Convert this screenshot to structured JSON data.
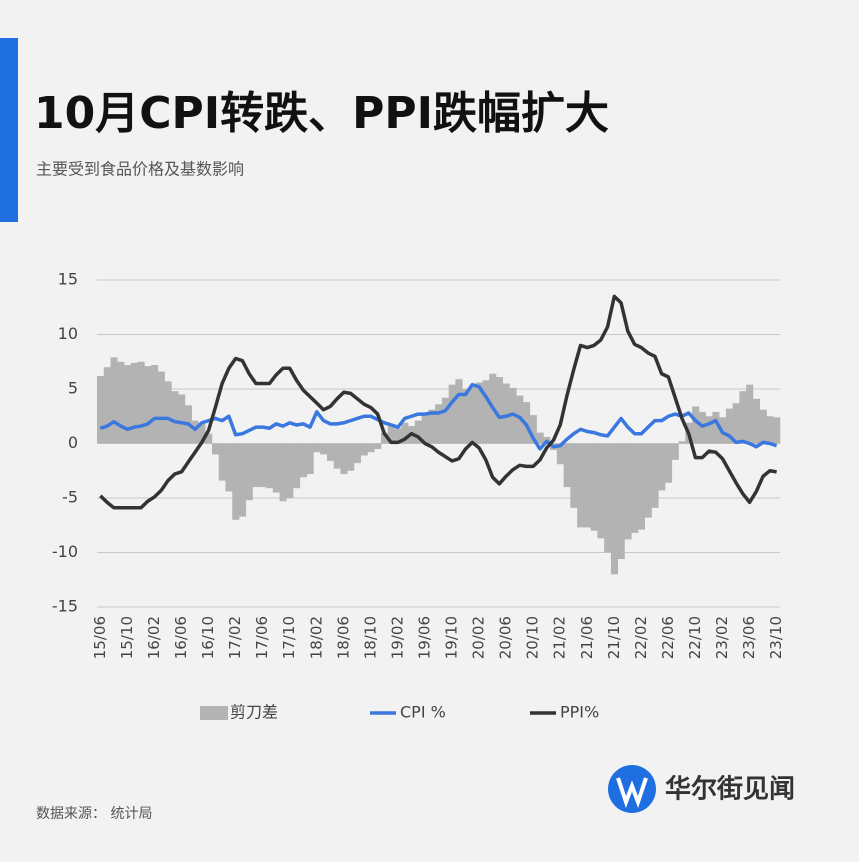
{
  "title": "10月CPI转跌、PPI跌幅扩大",
  "subtitle": "主要受到食品价格及基数影响",
  "source": "数据来源： 统计局",
  "logo": "华尔街见闻",
  "chart_data": {
    "type": "bar",
    "categories": [
      "15/06",
      null,
      null,
      null,
      "15/10",
      null,
      null,
      null,
      "16/02",
      null,
      null,
      null,
      "16/06",
      null,
      null,
      null,
      "16/10",
      null,
      null,
      null,
      "17/02",
      null,
      null,
      null,
      "17/06",
      null,
      null,
      null,
      "17/10",
      null,
      null,
      null,
      "18/02",
      null,
      null,
      null,
      "18/06",
      null,
      null,
      null,
      "18/10",
      null,
      null,
      null,
      "19/02",
      null,
      null,
      null,
      "19/06",
      null,
      null,
      null,
      "19/10",
      null,
      null,
      null,
      "20/02",
      null,
      null,
      null,
      "20/06",
      null,
      null,
      null,
      "20/10",
      null,
      null,
      null,
      "21/02",
      null,
      null,
      null,
      "21/06",
      null,
      null,
      null,
      "21/10",
      null,
      null,
      null,
      "22/02",
      null,
      null,
      null,
      "22/06",
      null,
      null,
      null,
      "22/10",
      null,
      null,
      null,
      "23/02",
      null,
      null,
      null,
      "23/06",
      null,
      null,
      null,
      "23/10"
    ],
    "series": [
      {
        "name": "剪刀差",
        "type": "bar",
        "color": "#b3b3b3",
        "values": [
          6.2,
          7.0,
          7.9,
          7.5,
          7.2,
          7.4,
          7.5,
          7.1,
          7.2,
          6.6,
          5.7,
          4.8,
          4.5,
          3.5,
          2.1,
          1.8,
          0.9,
          -1.0,
          -3.4,
          -4.4,
          -7.0,
          -6.7,
          -5.2,
          -4.0,
          -4.0,
          -4.1,
          -4.5,
          -5.3,
          -5.0,
          -4.1,
          -3.1,
          -2.8,
          -0.8,
          -1.0,
          -1.6,
          -2.3,
          -2.8,
          -2.5,
          -1.8,
          -1.1,
          -0.8,
          -0.5,
          1.0,
          1.6,
          1.4,
          1.9,
          1.6,
          2.1,
          2.7,
          3.1,
          3.6,
          4.2,
          5.4,
          5.9,
          5.0,
          5.3,
          5.6,
          5.8,
          6.4,
          6.1,
          5.5,
          5.1,
          4.4,
          3.8,
          2.6,
          1.0,
          0.6,
          -0.6,
          -1.9,
          -4.0,
          -5.9,
          -7.7,
          -7.7,
          -8.0,
          -8.7,
          -10.0,
          -12.0,
          -10.6,
          -8.8,
          -8.2,
          -7.9,
          -6.8,
          -5.9,
          -4.3,
          -3.6,
          -1.5,
          0.2,
          1.9,
          3.4,
          2.9,
          2.5,
          2.9,
          2.4,
          3.2,
          3.7,
          4.8,
          5.4,
          4.1,
          3.1,
          2.5,
          2.4
        ]
      },
      {
        "name": "CPI %",
        "type": "line",
        "color": "#3a78e0",
        "values": [
          1.4,
          1.6,
          2.0,
          1.6,
          1.3,
          1.5,
          1.6,
          1.8,
          2.3,
          2.3,
          2.3,
          2.0,
          1.9,
          1.8,
          1.3,
          1.9,
          2.1,
          2.3,
          2.1,
          2.5,
          0.8,
          0.9,
          1.2,
          1.5,
          1.5,
          1.4,
          1.8,
          1.6,
          1.9,
          1.7,
          1.8,
          1.5,
          2.9,
          2.1,
          1.8,
          1.8,
          1.9,
          2.1,
          2.3,
          2.5,
          2.5,
          2.2,
          1.9,
          1.7,
          1.5,
          2.3,
          2.5,
          2.7,
          2.7,
          2.8,
          2.8,
          3.0,
          3.8,
          4.5,
          4.5,
          5.4,
          5.2,
          4.3,
          3.3,
          2.4,
          2.5,
          2.7,
          2.4,
          1.7,
          0.5,
          -0.5,
          0.2,
          -0.3,
          -0.2,
          0.4,
          0.9,
          1.3,
          1.1,
          1.0,
          0.8,
          0.7,
          1.5,
          2.3,
          1.5,
          0.9,
          0.9,
          1.5,
          2.1,
          2.1,
          2.5,
          2.7,
          2.5,
          2.8,
          2.1,
          1.6,
          1.8,
          2.1,
          1.0,
          0.7,
          0.1,
          0.2,
          0.0,
          -0.3,
          0.1,
          0.0,
          -0.2
        ]
      },
      {
        "name": "PPI%",
        "type": "line",
        "color": "#333333",
        "values": [
          -4.8,
          -5.4,
          -5.9,
          -5.9,
          -5.9,
          -5.9,
          -5.9,
          -5.3,
          -4.9,
          -4.3,
          -3.4,
          -2.8,
          -2.6,
          -1.7,
          -0.8,
          0.1,
          1.2,
          3.3,
          5.5,
          6.9,
          7.8,
          7.6,
          6.4,
          5.5,
          5.5,
          5.5,
          6.3,
          6.9,
          6.9,
          5.8,
          4.9,
          4.3,
          3.7,
          3.1,
          3.4,
          4.1,
          4.7,
          4.6,
          4.1,
          3.6,
          3.3,
          2.7,
          0.9,
          0.1,
          0.1,
          0.4,
          0.9,
          0.6,
          0.0,
          -0.3,
          -0.8,
          -1.2,
          -1.6,
          -1.4,
          -0.5,
          0.1,
          -0.4,
          -1.5,
          -3.1,
          -3.7,
          -3.0,
          -2.4,
          -2.0,
          -2.1,
          -2.1,
          -1.5,
          -0.4,
          0.3,
          1.7,
          4.4,
          6.8,
          9.0,
          8.8,
          9.0,
          9.5,
          10.7,
          13.5,
          12.9,
          10.3,
          9.1,
          8.8,
          8.3,
          8.0,
          6.4,
          6.1,
          4.2,
          2.3,
          0.9,
          -1.3,
          -1.3,
          -0.7,
          -0.8,
          -1.4,
          -2.5,
          -3.6,
          -4.6,
          -5.4,
          -4.4,
          -3.0,
          -2.5,
          -2.6
        ]
      }
    ],
    "ylim": [
      -15,
      15
    ],
    "yticks": [
      -15,
      -10,
      -5,
      0,
      5,
      10,
      15
    ],
    "grid": true
  }
}
